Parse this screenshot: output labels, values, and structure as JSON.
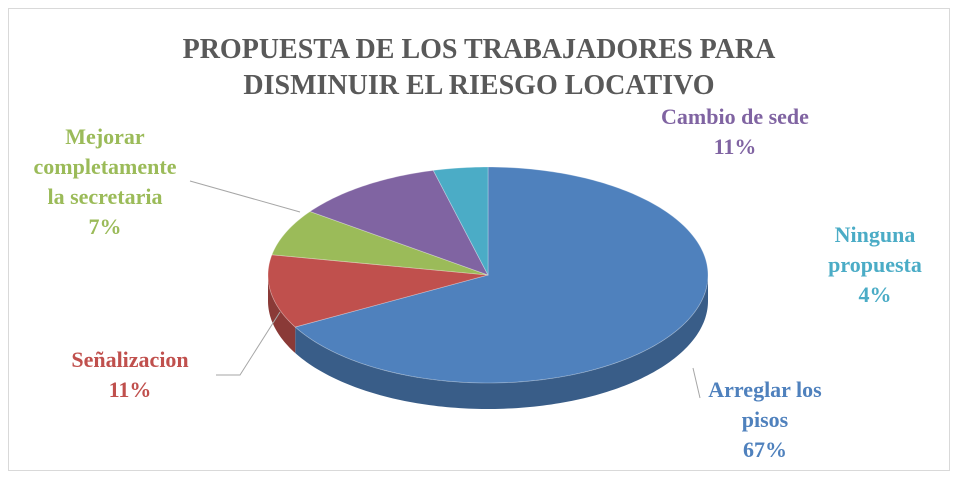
{
  "chart_data": {
    "type": "pie",
    "title": "PROPUESTA DE LOS TRABAJADORES PARA DISMINUIR EL RIESGO LOCATIVO",
    "categories": [
      "Arreglar los pisos",
      "Señalizacion",
      "Mejorar completamente la secretaria",
      "Cambio de sede",
      "Ninguna propuesta"
    ],
    "values": [
      67,
      11,
      7,
      11,
      4
    ],
    "value_labels": [
      "67%",
      "11%",
      "7%",
      "11%",
      "4%"
    ],
    "colors": [
      "#4f81bd",
      "#c0504d",
      "#9bbb59",
      "#8064a2",
      "#4bacc6"
    ]
  }
}
